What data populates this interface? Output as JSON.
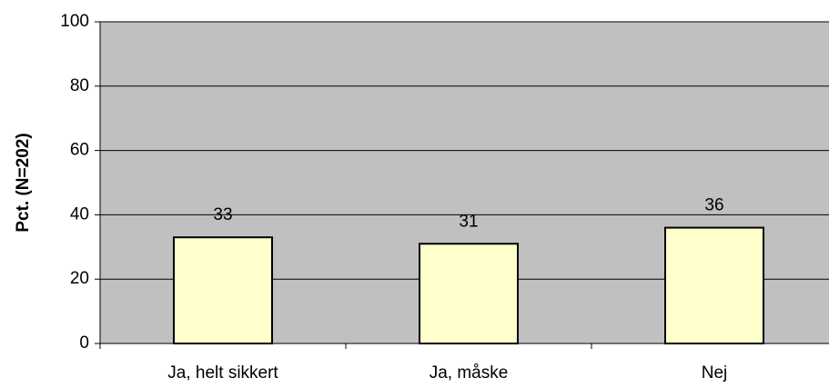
{
  "chart_data": {
    "type": "bar",
    "y_label": "Pct. (N=202)",
    "categories": [
      "Ja, helt sikkert",
      "Ja, måske",
      "Nej"
    ],
    "values": [
      33,
      31,
      36
    ],
    "color": "#ffffcc",
    "plot_background": "#c0c0c0",
    "ylim": [
      0,
      100
    ],
    "yticks": [
      0,
      20,
      40,
      60,
      80,
      100
    ],
    "grid": true
  }
}
